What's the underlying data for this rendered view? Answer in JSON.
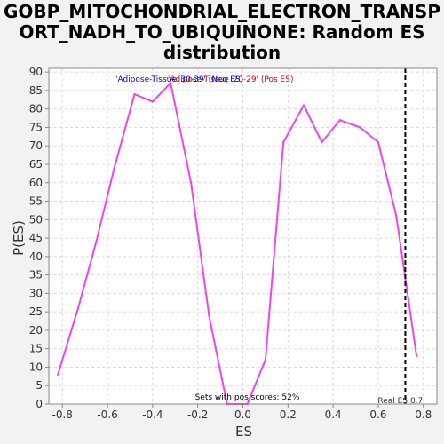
{
  "title_lines": [
    "GOBP_MITOCHONDRIAL_ELECTRON_TRANSP",
    "ORT_NADH_TO_UBIQUINONE: Random ES",
    "distribution"
  ],
  "colors": {
    "line": "#ee44ee",
    "neg_legend": "#0000cc",
    "pos_legend": "#cc0000",
    "grid": "#d8d8d8",
    "plot_bg": "#ffffff",
    "page_bg": "#f2f2f2",
    "real_es_line": "#000000"
  },
  "chart_data": {
    "type": "line",
    "title": "GOBP_MITOCHONDRIAL_ELECTRON_TRANSPORT_NADH_TO_UBIQUINONE: Random ES distribution",
    "xlabel": "ES",
    "ylabel": "P(ES)",
    "xlim": [
      -0.86,
      0.86
    ],
    "ylim": [
      0,
      91
    ],
    "grid": true,
    "x_ticks": [
      -0.8,
      -0.6,
      -0.4,
      -0.2,
      0.0,
      0.2,
      0.4,
      0.6,
      0.8
    ],
    "x_tick_labels": [
      "-0.8",
      "-0.6",
      "-0.4",
      "-0.2",
      "0.0",
      "0.2",
      "0.4",
      "0.6",
      "0.8"
    ],
    "y_ticks": [
      0,
      5,
      10,
      15,
      20,
      25,
      30,
      35,
      40,
      45,
      50,
      55,
      60,
      65,
      70,
      75,
      80,
      85,
      90
    ],
    "y_tick_labels": [
      "0",
      "5",
      "10",
      "15",
      "20",
      "25",
      "30",
      "35",
      "40",
      "45",
      "50",
      "55",
      "60",
      "65",
      "70",
      "75",
      "80",
      "85",
      "90"
    ],
    "series": [
      {
        "x": [
          -0.82,
          -0.73,
          -0.65,
          -0.57,
          -0.48,
          -0.4,
          -0.32,
          -0.23,
          -0.15,
          -0.07,
          0.02,
          0.1,
          0.18,
          0.27,
          0.35,
          0.43,
          0.52,
          0.6,
          0.68,
          0.77
        ],
        "y": [
          8,
          26,
          44,
          64,
          84,
          82,
          87,
          60,
          24,
          0,
          0,
          12,
          71,
          81,
          71,
          77,
          75,
          71,
          51,
          13
        ]
      }
    ],
    "legend": {
      "neg": "'Adipose-Tissue_30-39' (Neg ES)",
      "pos": "'Adipose-Tissue_20-29' (Pos ES)"
    },
    "annotations": {
      "sets_with_pos": "Sets with pos scores: 52%",
      "real_es_label": "Real ES 0.7",
      "real_es_value": 0.72
    }
  }
}
